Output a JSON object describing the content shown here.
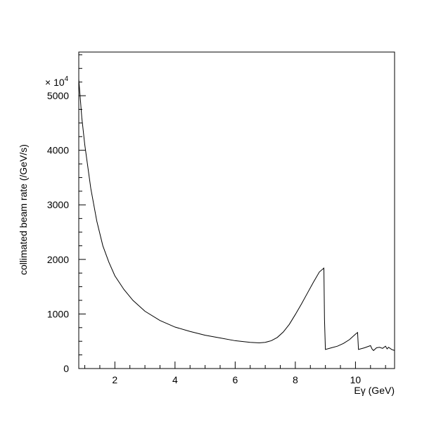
{
  "chart_data": {
    "type": "line",
    "title": "",
    "xlabel": "Eγ (GeV)",
    "ylabel": "collimated beam rate (/GeV/s)",
    "y_multiplier": {
      "base": "× 10",
      "exponent": "4"
    },
    "xlim": [
      0.8,
      11.3
    ],
    "ylim": [
      0,
      5800
    ],
    "x_ticks": [
      {
        "value": 2,
        "label": "2"
      },
      {
        "value": 4,
        "label": "4"
      },
      {
        "value": 6,
        "label": "6"
      },
      {
        "value": 8,
        "label": "8"
      },
      {
        "value": 10,
        "label": "10"
      }
    ],
    "y_ticks": [
      {
        "value": 0,
        "label": "0"
      },
      {
        "value": 1000,
        "label": "1000"
      },
      {
        "value": 2000,
        "label": "2000"
      },
      {
        "value": 3000,
        "label": "3000"
      },
      {
        "value": 4000,
        "label": "4000"
      },
      {
        "value": 5000,
        "label": "5000"
      }
    ],
    "grid": false,
    "series": [
      {
        "color": "#000000",
        "x": [
          0.8,
          0.9,
          1.0,
          1.2,
          1.4,
          1.6,
          1.8,
          2.0,
          2.3,
          2.6,
          3.0,
          3.5,
          4.0,
          4.5,
          5.0,
          5.5,
          6.0,
          6.5,
          6.8,
          7.0,
          7.2,
          7.4,
          7.6,
          7.8,
          8.0,
          8.2,
          8.4,
          8.6,
          8.8,
          8.95,
          8.97,
          9.0,
          9.2,
          9.4,
          9.6,
          9.8,
          10.0,
          10.07,
          10.1,
          10.3,
          10.5,
          10.55,
          10.6,
          10.7,
          10.8,
          10.9,
          11.0,
          11.05,
          11.1,
          11.2,
          11.3
        ],
        "y": [
          5300,
          4600,
          4100,
          3300,
          2700,
          2250,
          1950,
          1700,
          1450,
          1250,
          1050,
          880,
          760,
          680,
          610,
          560,
          510,
          480,
          470,
          480,
          510,
          570,
          670,
          810,
          990,
          1180,
          1380,
          1580,
          1770,
          1840,
          900,
          350,
          380,
          410,
          460,
          530,
          630,
          660,
          350,
          380,
          420,
          360,
          330,
          380,
          390,
          370,
          410,
          360,
          390,
          350,
          330
        ]
      }
    ]
  }
}
